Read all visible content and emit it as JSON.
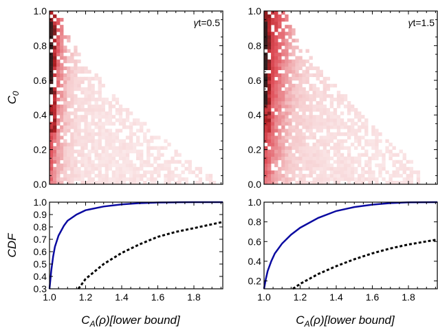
{
  "chart_data": [
    {
      "id": "top-left",
      "type": "heatmap",
      "annotation_prefix": "γ",
      "annotation": "t=0.5",
      "ylabel_main": "C",
      "ylabel_sub": "0",
      "xlim": [
        1.0,
        1.96
      ],
      "ylim": [
        0.0,
        1.0
      ],
      "yticks": [
        "0.0",
        "0.2",
        "0.4",
        "0.6",
        "0.8",
        "1.0"
      ],
      "yticks_values": [
        0.0,
        0.2,
        0.4,
        0.6,
        0.8,
        1.0
      ],
      "colormap": [
        "#ffffff",
        "#f5c9cb",
        "#e0505a",
        "#b01e22",
        "#1e1e1e"
      ],
      "boundary": {
        "x_max_at_c0_1": 1.06,
        "x_max_at_c0_0": 1.96,
        "curvature": 1.5
      },
      "density_decay": 0.07,
      "seed": 7
    },
    {
      "id": "top-right",
      "type": "heatmap",
      "annotation_prefix": "γ",
      "annotation": "t=1.5",
      "xlim": [
        1.0,
        1.96
      ],
      "ylim": [
        0.0,
        1.0
      ],
      "yticks": [
        "0.0",
        "0.2",
        "0.4",
        "0.6",
        "0.8",
        "1.0"
      ],
      "yticks_values": [
        0.0,
        0.2,
        0.4,
        0.6,
        0.8,
        1.0
      ],
      "colormap": [
        "#ffffff",
        "#f5c9cb",
        "#e0505a",
        "#b01e22",
        "#1e1e1e"
      ],
      "boundary": {
        "x_max_at_c0_1": 1.12,
        "x_max_at_c0_0": 1.96,
        "curvature": 1.3
      },
      "density_decay": 0.12,
      "seed": 13
    },
    {
      "id": "bottom-left",
      "type": "line",
      "ylabel": "CDF",
      "xlabel_main": "C",
      "xlabel_sub": "A",
      "xlabel_rest": "(ρ)[lower bound]",
      "xlim": [
        1.0,
        1.96
      ],
      "ylim": [
        0.3,
        1.0
      ],
      "xticks": [
        "1.0",
        "1.2",
        "1.4",
        "1.6",
        "1.8"
      ],
      "xticks_values": [
        1.0,
        1.2,
        1.4,
        1.6,
        1.8
      ],
      "yticks": [
        "0.3",
        "0.4",
        "0.5",
        "0.6",
        "0.7",
        "0.8",
        "0.9",
        "1.0"
      ],
      "yticks_values": [
        0.3,
        0.4,
        0.5,
        0.6,
        0.7,
        0.8,
        0.9,
        1.0
      ],
      "series": [
        {
          "color": "#0a0aa0",
          "style": "solid",
          "x": [
            1.0,
            1.01,
            1.02,
            1.03,
            1.05,
            1.08,
            1.1,
            1.15,
            1.2,
            1.3,
            1.4,
            1.5,
            1.6,
            1.7,
            1.8,
            1.96
          ],
          "y": [
            0.3,
            0.45,
            0.56,
            0.64,
            0.73,
            0.81,
            0.85,
            0.9,
            0.935,
            0.965,
            0.982,
            0.992,
            0.997,
            0.999,
            1.0,
            1.0
          ]
        },
        {
          "color": "#000000",
          "style": "dotted",
          "x": [
            1.16,
            1.2,
            1.3,
            1.4,
            1.5,
            1.6,
            1.7,
            1.8,
            1.96
          ],
          "y": [
            0.3,
            0.38,
            0.5,
            0.59,
            0.66,
            0.72,
            0.76,
            0.79,
            0.84
          ]
        }
      ]
    },
    {
      "id": "bottom-right",
      "type": "line",
      "xlabel_main": "C",
      "xlabel_sub": "A",
      "xlabel_rest": "(ρ)[lower bound]",
      "xlim": [
        1.0,
        1.96
      ],
      "ylim": [
        0.12,
        1.0
      ],
      "xticks": [
        "1.0",
        "1.2",
        "1.4",
        "1.6",
        "1.8"
      ],
      "xticks_values": [
        1.0,
        1.2,
        1.4,
        1.6,
        1.8
      ],
      "yticks": [
        "0.2",
        "0.4",
        "0.6",
        "0.8",
        "1.0"
      ],
      "yticks_values": [
        0.2,
        0.4,
        0.6,
        0.8,
        1.0
      ],
      "series": [
        {
          "color": "#0a0aa0",
          "style": "solid",
          "x": [
            1.0,
            1.01,
            1.02,
            1.04,
            1.06,
            1.1,
            1.15,
            1.2,
            1.3,
            1.4,
            1.5,
            1.6,
            1.7,
            1.8,
            1.96
          ],
          "y": [
            0.12,
            0.22,
            0.3,
            0.4,
            0.48,
            0.58,
            0.67,
            0.74,
            0.84,
            0.91,
            0.95,
            0.975,
            0.99,
            0.998,
            1.0
          ]
        },
        {
          "color": "#000000",
          "style": "dotted",
          "x": [
            1.16,
            1.2,
            1.3,
            1.4,
            1.5,
            1.6,
            1.7,
            1.8,
            1.96
          ],
          "y": [
            0.12,
            0.17,
            0.27,
            0.35,
            0.42,
            0.48,
            0.53,
            0.57,
            0.62
          ]
        }
      ]
    }
  ]
}
